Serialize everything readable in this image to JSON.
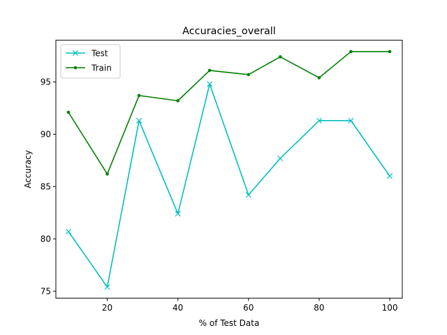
{
  "chart_data": {
    "type": "line",
    "title": "Accuracies_overall",
    "xlabel": "% of Test Data",
    "ylabel": "Accuracy",
    "xlim": [
      5.45,
      103.55
    ],
    "ylim": [
      74.33,
      98.99
    ],
    "xticks": [
      20,
      40,
      60,
      80,
      100
    ],
    "yticks": [
      75,
      80,
      85,
      90,
      95
    ],
    "grid": false,
    "legend_position": "top-left",
    "x": [
      9,
      20,
      29,
      40,
      49,
      60,
      69,
      80,
      89,
      100
    ],
    "series": [
      {
        "name": "Test",
        "color": "#00bfbf",
        "marker": "x",
        "values": [
          80.7,
          75.4,
          91.3,
          82.4,
          94.8,
          84.2,
          87.7,
          91.3,
          91.3,
          86.0
        ]
      },
      {
        "name": "Train",
        "color": "#008000",
        "marker": "point",
        "values": [
          92.1,
          86.2,
          93.7,
          93.2,
          96.1,
          95.7,
          97.4,
          95.4,
          97.9,
          97.9
        ]
      }
    ]
  }
}
